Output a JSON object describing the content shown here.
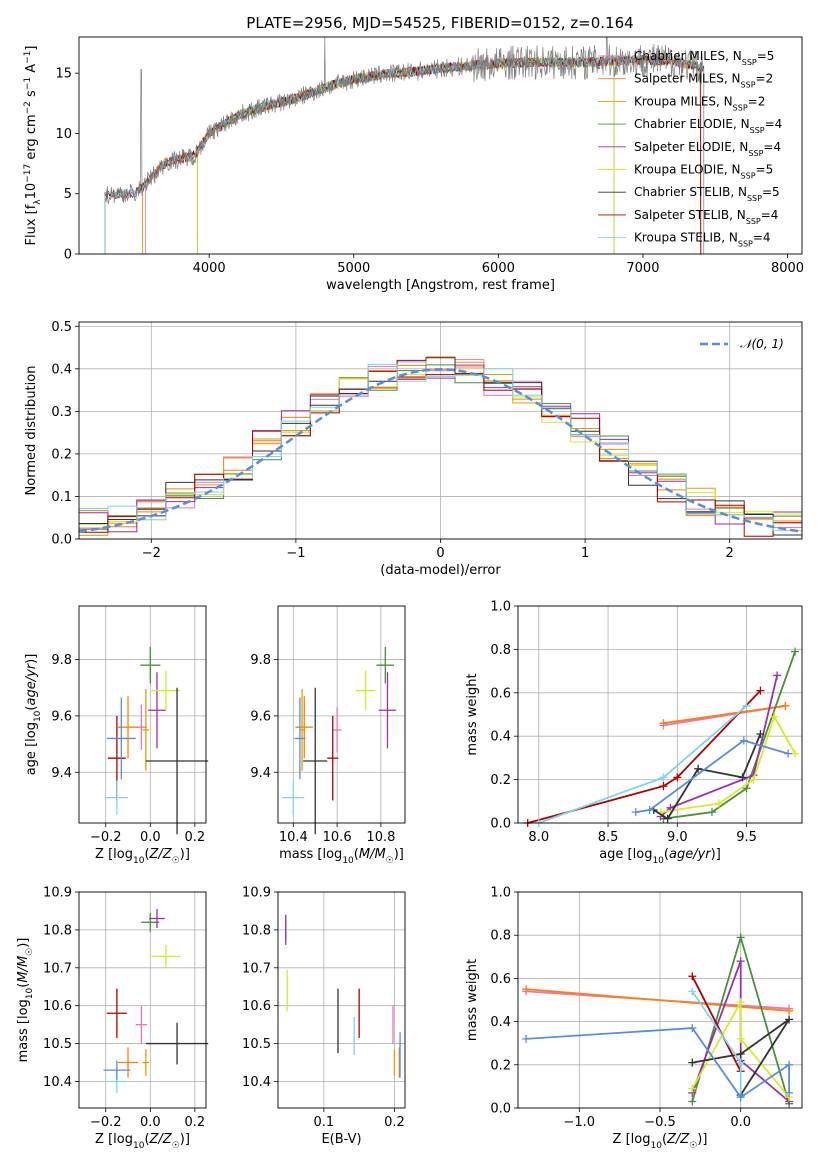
{
  "title": "PLATE=2956, MJD=54525, FIBERID=0152, z=0.164",
  "series_colors": {
    "Chabrier MILES": "#e377c2",
    "Salpeter MILES": "#ff7f0e",
    "Kroupa MILES": "#e69f00",
    "Chabrier ELODIE": "#4a8f3c",
    "Salpeter ELODIE": "#9b2fae",
    "Kroupa ELODIE": "#d4ec2a",
    "Chabrier STELIB": "#333333",
    "Salpeter STELIB": "#b00000",
    "Kroupa STELIB": "#7fd4e8",
    "Gaussian": "#5a8ed8",
    "Data": "#7f7f7f"
  },
  "chart_data": [
    {
      "type": "line",
      "panel": "spectrum",
      "xlabel": "wavelength [Angstrom, rest frame]",
      "ylabel": "Flux [f_λ 10^-17 erg cm^-2 s^-1 A^-1]",
      "xlim": [
        3100,
        8100
      ],
      "ylim": [
        0,
        18
      ],
      "xticks": [
        "4000",
        "5000",
        "6000",
        "7000",
        "8000"
      ],
      "yticks": [
        "0",
        "5",
        "10",
        "15"
      ],
      "continuum_x": [
        3280,
        3500,
        3700,
        3900,
        4000,
        4200,
        4400,
        4600,
        4800,
        5000,
        5200,
        5400,
        5600,
        5800,
        6000,
        6200,
        6400,
        6600,
        6800,
        7000,
        7200,
        7400
      ],
      "continuum_y": [
        4.9,
        5.1,
        7.6,
        8.2,
        10.0,
        11.5,
        12.3,
        12.9,
        13.8,
        14.5,
        14.9,
        15.1,
        15.4,
        15.6,
        15.8,
        15.9,
        15.9,
        15.9,
        16.0,
        16.1,
        16.0,
        15.5
      ],
      "legend": [
        {
          "label": "Chabrier MILES, N",
          "sub": "SSP",
          "n": "=5"
        },
        {
          "label": "Salpeter MILES, N",
          "sub": "SSP",
          "n": "=2"
        },
        {
          "label": "Kroupa MILES, N",
          "sub": "SSP",
          "n": "=2"
        },
        {
          "label": "Chabrier ELODIE, N",
          "sub": "SSP",
          "n": "=4"
        },
        {
          "label": "Salpeter ELODIE, N",
          "sub": "SSP",
          "n": "=4"
        },
        {
          "label": "Kroupa ELODIE, N",
          "sub": "SSP",
          "n": "=5"
        },
        {
          "label": "Chabrier STELIB, N",
          "sub": "SSP",
          "n": "=5"
        },
        {
          "label": "Salpeter STELIB, N",
          "sub": "SSP",
          "n": "=4"
        },
        {
          "label": "Kroupa STELIB, N",
          "sub": "SSP",
          "n": "=4"
        }
      ]
    },
    {
      "type": "histogram",
      "panel": "residuals",
      "xlabel": "(data-model)/error",
      "ylabel": "Normed distribution",
      "xlim": [
        -2.5,
        2.5
      ],
      "ylim": [
        0,
        0.51
      ],
      "xticks": [
        "−2",
        "−1",
        "0",
        "1",
        "2"
      ],
      "yticks": [
        "0.0",
        "0.1",
        "0.2",
        "0.3",
        "0.4",
        "0.5"
      ],
      "legend_label": "𝒩(0, 1)",
      "bins_x": [
        -2.5,
        -2.3,
        -2.1,
        -1.9,
        -1.7,
        -1.5,
        -1.3,
        -1.1,
        -0.9,
        -0.7,
        -0.5,
        -0.3,
        -0.1,
        0.1,
        0.3,
        0.5,
        0.7,
        0.9,
        1.1,
        1.3,
        1.5,
        1.7,
        1.9,
        2.1,
        2.3,
        2.5
      ],
      "profile": [
        0.04,
        0.05,
        0.07,
        0.1,
        0.13,
        0.17,
        0.22,
        0.27,
        0.31,
        0.35,
        0.38,
        0.4,
        0.41,
        0.4,
        0.37,
        0.34,
        0.3,
        0.26,
        0.21,
        0.16,
        0.12,
        0.09,
        0.06,
        0.04,
        0.03
      ],
      "gaussian": "N(0,1)"
    },
    {
      "type": "scatter",
      "panel": "age_vs_Z",
      "xlabel": "Z [log10(Z/Z☉)]",
      "ylabel": "age  [log10(age/yr)]",
      "xlim": [
        -0.32,
        0.25
      ],
      "ylim": [
        9.22,
        9.99
      ],
      "xticks": [
        "−0.2",
        "0.0",
        "0.2"
      ],
      "yticks": [
        "9.4",
        "9.6",
        "9.8"
      ],
      "points": [
        {
          "s": "Chabrier MILES",
          "x": -0.04,
          "y": 9.56,
          "xe": 0.05,
          "ye": 0.16
        },
        {
          "s": "Salpeter MILES",
          "x": -0.1,
          "y": 9.56,
          "xe": 0.09,
          "ye": 0.22
        },
        {
          "s": "Kroupa MILES",
          "x": -0.02,
          "y": 9.55,
          "xe": 0.03,
          "ye": 0.29
        },
        {
          "s": "Chabrier ELODIE",
          "x": 0.0,
          "y": 9.78,
          "xe": 0.09,
          "ye": 0.13
        },
        {
          "s": "Salpeter ELODIE",
          "x": 0.03,
          "y": 9.62,
          "xe": 0.08,
          "ye": 0.27
        },
        {
          "s": "Kroupa ELODIE",
          "x": 0.07,
          "y": 9.69,
          "xe": 0.13,
          "ye": 0.14
        },
        {
          "s": "Chabrier STELIB",
          "x": 0.12,
          "y": 9.44,
          "xe": 0.28,
          "ye": 0.52
        },
        {
          "s": "Salpeter STELIB",
          "x": -0.15,
          "y": 9.45,
          "xe": 0.08,
          "ye": 0.3
        },
        {
          "s": "Kroupa STELIB",
          "x": -0.15,
          "y": 9.31,
          "xe": 0.1,
          "ye": 0.12
        },
        {
          "s": "Gaussian",
          "x": -0.13,
          "y": 9.52,
          "xe": 0.13,
          "ye": 0.29
        }
      ]
    },
    {
      "type": "scatter",
      "panel": "age_vs_mass",
      "xlabel": "mass [log10(M/M☉)]",
      "ylabel": "",
      "xlim": [
        10.33,
        10.91
      ],
      "ylim": [
        9.22,
        9.99
      ],
      "xticks": [
        "10.4",
        "10.6",
        "10.8"
      ],
      "yticks": [
        "9.4",
        "9.6",
        "9.8"
      ],
      "points": [
        {
          "s": "Chabrier MILES",
          "x": 10.6,
          "y": 9.55,
          "xe": 0.04,
          "ye": 0.16
        },
        {
          "s": "Salpeter MILES",
          "x": 10.45,
          "y": 9.56,
          "xe": 0.08,
          "ye": 0.22
        },
        {
          "s": "Kroupa MILES",
          "x": 10.44,
          "y": 9.55,
          "xe": 0.02,
          "ye": 0.29
        },
        {
          "s": "Chabrier ELODIE",
          "x": 10.82,
          "y": 9.78,
          "xe": 0.08,
          "ye": 0.13
        },
        {
          "s": "Salpeter ELODIE",
          "x": 10.83,
          "y": 9.62,
          "xe": 0.08,
          "ye": 0.27
        },
        {
          "s": "Kroupa ELODIE",
          "x": 10.73,
          "y": 9.69,
          "xe": 0.09,
          "ye": 0.14
        },
        {
          "s": "Chabrier STELIB",
          "x": 10.5,
          "y": 9.44,
          "xe": 0.11,
          "ye": 0.52
        },
        {
          "s": "Salpeter STELIB",
          "x": 10.58,
          "y": 9.45,
          "xe": 0.05,
          "ye": 0.3
        },
        {
          "s": "Kroupa STELIB",
          "x": 10.4,
          "y": 9.31,
          "xe": 0.1,
          "ye": 0.12
        },
        {
          "s": "Gaussian",
          "x": 10.43,
          "y": 9.52,
          "xe": 0.05,
          "ye": 0.29
        }
      ]
    },
    {
      "type": "line",
      "panel": "mass_weight_vs_age",
      "xlabel": "age  [log10(age/yr)]",
      "ylabel": "mass weight",
      "xlim": [
        7.85,
        9.9
      ],
      "ylim": [
        0,
        1.0
      ],
      "xticks": [
        "8.0",
        "8.5",
        "9.0",
        "9.5"
      ],
      "yticks": [
        "0.0",
        "0.2",
        "0.4",
        "0.6",
        "0.8",
        "1.0"
      ],
      "series": [
        {
          "s": "Chabrier MILES",
          "x": [
            8.9,
            9.78
          ],
          "y": [
            0.45,
            0.54
          ]
        },
        {
          "s": "Salpeter MILES",
          "x": [
            8.9,
            9.78
          ],
          "y": [
            0.46,
            0.54
          ]
        },
        {
          "s": "Chabrier ELODIE",
          "x": [
            8.9,
            9.25,
            9.5,
            9.85
          ],
          "y": [
            0.02,
            0.05,
            0.16,
            0.79
          ]
        },
        {
          "s": "Salpeter ELODIE",
          "x": [
            8.88,
            8.95,
            9.55,
            9.72
          ],
          "y": [
            0.03,
            0.07,
            0.22,
            0.68
          ]
        },
        {
          "s": "Kroupa ELODIE",
          "x": [
            8.88,
            9.3,
            9.55,
            9.7,
            9.85
          ],
          "y": [
            0.05,
            0.09,
            0.2,
            0.49,
            0.32
          ]
        },
        {
          "s": "Chabrier STELIB",
          "x": [
            8.83,
            8.93,
            9.15,
            9.47,
            9.6
          ],
          "y": [
            0.06,
            0.02,
            0.25,
            0.21,
            0.41
          ]
        },
        {
          "s": "Salpeter STELIB",
          "x": [
            7.92,
            8.9,
            9.0,
            9.6
          ],
          "y": [
            0.0,
            0.17,
            0.21,
            0.61
          ]
        },
        {
          "s": "Kroupa STELIB",
          "x": [
            8.0,
            8.9,
            9.5
          ],
          "y": [
            0.0,
            0.21,
            0.54
          ]
        },
        {
          "s": "Gaussian",
          "x": [
            8.7,
            8.8,
            9.48,
            9.8
          ],
          "y": [
            0.05,
            0.06,
            0.38,
            0.32
          ]
        }
      ]
    },
    {
      "type": "scatter",
      "panel": "mass_vs_Z",
      "xlabel": "Z [log10(Z/Z☉)]",
      "ylabel": "mass [log10(M/M☉)]",
      "xlim": [
        -0.32,
        0.25
      ],
      "ylim": [
        10.33,
        10.9
      ],
      "xticks": [
        "−0.2",
        "0.0",
        "0.2"
      ],
      "yticks": [
        "10.4",
        "10.5",
        "10.6",
        "10.7",
        "10.8",
        "10.9"
      ],
      "points": [
        {
          "s": "Chabrier MILES",
          "x": -0.04,
          "y": 10.55,
          "xe": 0.05,
          "ye": 0.1
        },
        {
          "s": "Salpeter MILES",
          "x": -0.1,
          "y": 10.45,
          "xe": 0.09,
          "ye": 0.08
        },
        {
          "s": "Kroupa MILES",
          "x": -0.02,
          "y": 10.45,
          "xe": 0.03,
          "ye": 0.07
        },
        {
          "s": "Chabrier ELODIE",
          "x": 0.0,
          "y": 10.82,
          "xe": 0.08,
          "ye": 0.05
        },
        {
          "s": "Salpeter ELODIE",
          "x": 0.03,
          "y": 10.83,
          "xe": 0.07,
          "ye": 0.05
        },
        {
          "s": "Kroupa ELODIE",
          "x": 0.07,
          "y": 10.73,
          "xe": 0.13,
          "ye": 0.06
        },
        {
          "s": "Chabrier STELIB",
          "x": 0.12,
          "y": 10.5,
          "xe": 0.28,
          "ye": 0.11
        },
        {
          "s": "Salpeter STELIB",
          "x": -0.15,
          "y": 10.58,
          "xe": 0.09,
          "ye": 0.13
        },
        {
          "s": "Kroupa STELIB",
          "x": -0.15,
          "y": 10.4,
          "xe": 0.09,
          "ye": 0.06
        },
        {
          "s": "Gaussian",
          "x": -0.15,
          "y": 10.43,
          "xe": 0.12,
          "ye": 0.05
        }
      ]
    },
    {
      "type": "scatter",
      "panel": "mass_vs_EBV",
      "xlabel": "E(B-V)",
      "ylabel": "",
      "xlim": [
        0.035,
        0.215
      ],
      "ylim": [
        10.33,
        10.9
      ],
      "xticks": [
        "0.1",
        "0.2"
      ],
      "yticks": [
        "10.4",
        "10.5",
        "10.6",
        "10.7",
        "10.8",
        "10.9"
      ],
      "points": [
        {
          "s": "Chabrier MILES",
          "x": 0.198,
          "y": 10.55,
          "xe": 0.0,
          "ye": 0.1
        },
        {
          "s": "Salpeter MILES",
          "x": 0.207,
          "y": 10.45,
          "xe": 0.0,
          "ye": 0.08
        },
        {
          "s": "Kroupa MILES",
          "x": 0.2,
          "y": 10.45,
          "xe": 0.0,
          "ye": 0.07
        },
        {
          "s": "Chabrier ELODIE",
          "x": 0.046,
          "y": 10.8,
          "xe": 0.0,
          "ye": 0.05
        },
        {
          "s": "Salpeter ELODIE",
          "x": 0.046,
          "y": 10.8,
          "xe": 0.0,
          "ye": 0.08
        },
        {
          "s": "Kroupa ELODIE",
          "x": 0.048,
          "y": 10.64,
          "xe": 0.0,
          "ye": 0.11
        },
        {
          "s": "Chabrier STELIB",
          "x": 0.12,
          "y": 10.56,
          "xe": 0.0,
          "ye": 0.17
        },
        {
          "s": "Salpeter STELIB",
          "x": 0.15,
          "y": 10.58,
          "xe": 0.0,
          "ye": 0.13
        },
        {
          "s": "Kroupa STELIB",
          "x": 0.143,
          "y": 10.52,
          "xe": 0.0,
          "ye": 0.1
        },
        {
          "s": "Gaussian",
          "x": 0.208,
          "y": 10.47,
          "xe": 0.0,
          "ye": 0.12
        }
      ]
    },
    {
      "type": "line",
      "panel": "mass_weight_vs_Z",
      "xlabel": "Z [log10(Z/Z☉)]",
      "ylabel": "mass weight",
      "xlim": [
        -1.38,
        0.38
      ],
      "ylim": [
        0,
        1.0
      ],
      "xticks": [
        "−1.0",
        "−0.5",
        "0.0"
      ],
      "yticks": [
        "0.0",
        "0.2",
        "0.4",
        "0.6",
        "0.8",
        "1.0"
      ],
      "series": [
        {
          "s": "Chabrier MILES",
          "x": [
            -1.33,
            0.3
          ],
          "y": [
            0.54,
            0.46
          ]
        },
        {
          "s": "Salpeter MILES",
          "x": [
            -1.33,
            0.3
          ],
          "y": [
            0.55,
            0.45
          ]
        },
        {
          "s": "Chabrier ELODIE",
          "x": [
            -0.3,
            0.0,
            0.3
          ],
          "y": [
            0.03,
            0.79,
            0.02
          ]
        },
        {
          "s": "Salpeter ELODIE",
          "x": [
            -0.3,
            0.0,
            0.0,
            0.3
          ],
          "y": [
            0.07,
            0.68,
            0.22,
            0.03
          ]
        },
        {
          "s": "Kroupa ELODIE",
          "x": [
            -0.3,
            0.0,
            0.0,
            0.3
          ],
          "y": [
            0.09,
            0.49,
            0.32,
            0.05
          ]
        },
        {
          "s": "Chabrier STELIB",
          "x": [
            -0.3,
            0.0,
            0.3,
            0.0
          ],
          "y": [
            0.21,
            0.25,
            0.41,
            0.06
          ]
        },
        {
          "s": "Salpeter STELIB",
          "x": [
            -0.3,
            0.0,
            0.0
          ],
          "y": [
            0.61,
            0.17,
            0.21
          ]
        },
        {
          "s": "Kroupa STELIB",
          "x": [
            -0.3,
            0.0,
            0.0
          ],
          "y": [
            0.54,
            0.21,
            0.05
          ]
        },
        {
          "s": "Gaussian",
          "x": [
            -1.33,
            -0.3,
            0.0,
            0.3,
            0.3
          ],
          "y": [
            0.32,
            0.37,
            0.05,
            0.2,
            0.07
          ]
        }
      ]
    }
  ]
}
